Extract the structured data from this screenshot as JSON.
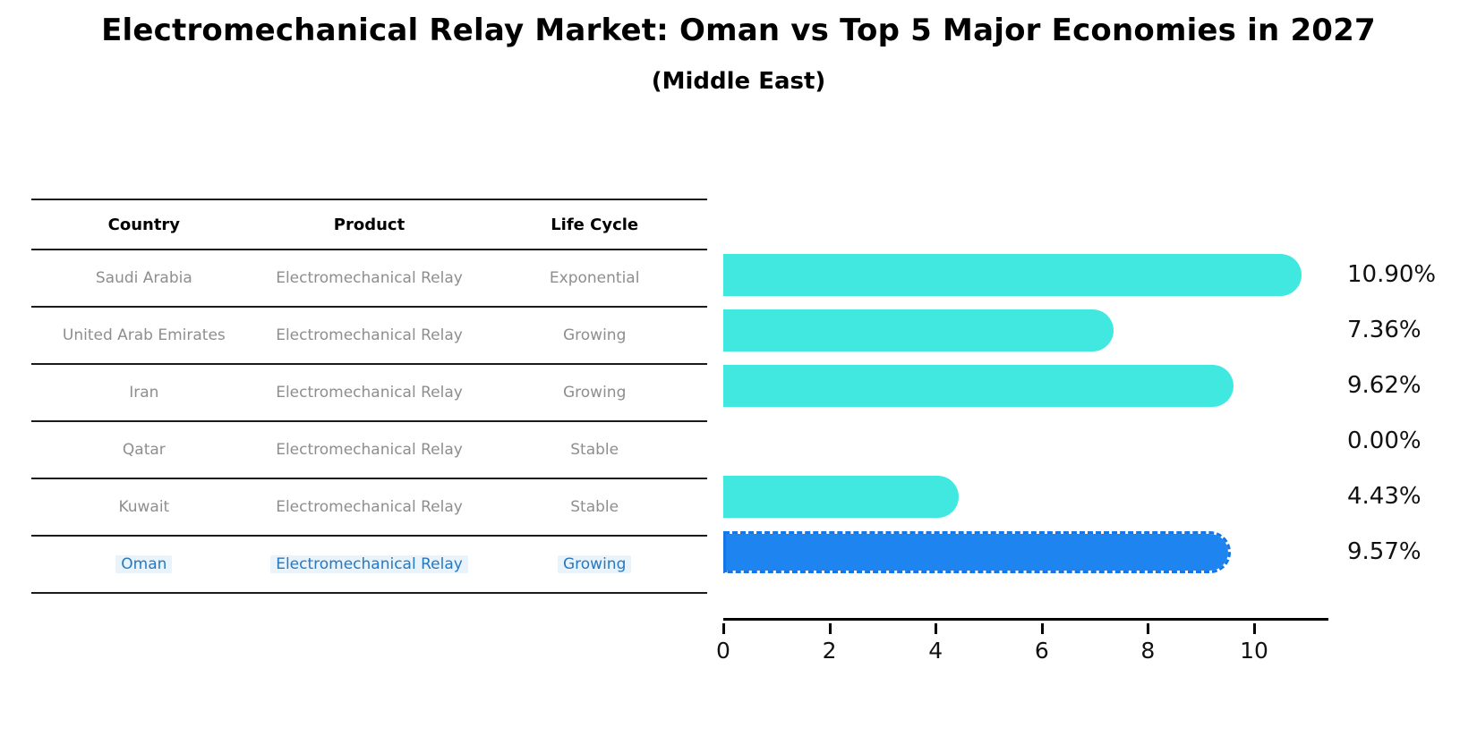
{
  "title": "Electromechanical Relay Market: Oman vs Top 5 Major Economies in 2027",
  "subtitle": "(Middle East)",
  "table": {
    "headers": [
      "Country",
      "Product",
      "Life Cycle"
    ],
    "rows": [
      {
        "country": "Saudi Arabia",
        "product": "Electromechanical Relay",
        "life_cycle": "Exponential",
        "highlight": false
      },
      {
        "country": "United Arab Emirates",
        "product": "Electromechanical Relay",
        "life_cycle": "Growing",
        "highlight": false
      },
      {
        "country": "Iran",
        "product": "Electromechanical Relay",
        "life_cycle": "Growing",
        "highlight": false
      },
      {
        "country": "Qatar",
        "product": "Electromechanical Relay",
        "life_cycle": "Stable",
        "highlight": false
      },
      {
        "country": "Kuwait",
        "product": "Electromechanical Relay",
        "life_cycle": "Stable",
        "highlight": false
      },
      {
        "country": "Oman",
        "product": "Electromechanical Relay",
        "life_cycle": "Growing",
        "highlight": true
      }
    ]
  },
  "chart_data": {
    "type": "bar",
    "orientation": "horizontal",
    "title": "Electromechanical Relay Market: Oman vs Top 5 Major Economies in 2027",
    "subtitle": "(Middle East)",
    "categories": [
      "Saudi Arabia",
      "United Arab Emirates",
      "Iran",
      "Qatar",
      "Kuwait",
      "Oman"
    ],
    "values": [
      10.9,
      7.36,
      9.62,
      0.0,
      4.43,
      9.57
    ],
    "value_labels": [
      "10.90%",
      "7.36%",
      "9.62%",
      "0.00%",
      "4.43%",
      "9.57%"
    ],
    "xlabel": "",
    "ylabel": "",
    "xticks": [
      0,
      2,
      4,
      6,
      8,
      10
    ],
    "xlim": [
      0,
      11.4
    ],
    "grid": false,
    "legend": false,
    "highlight_category": "Oman",
    "bar_color": "#40e8e0",
    "highlight_bar_color": "#1e84f0",
    "highlight_bar_border_color": "#1576e8",
    "highlight_text_color": "#2878be",
    "table_text_color": "#8e8e8e"
  }
}
